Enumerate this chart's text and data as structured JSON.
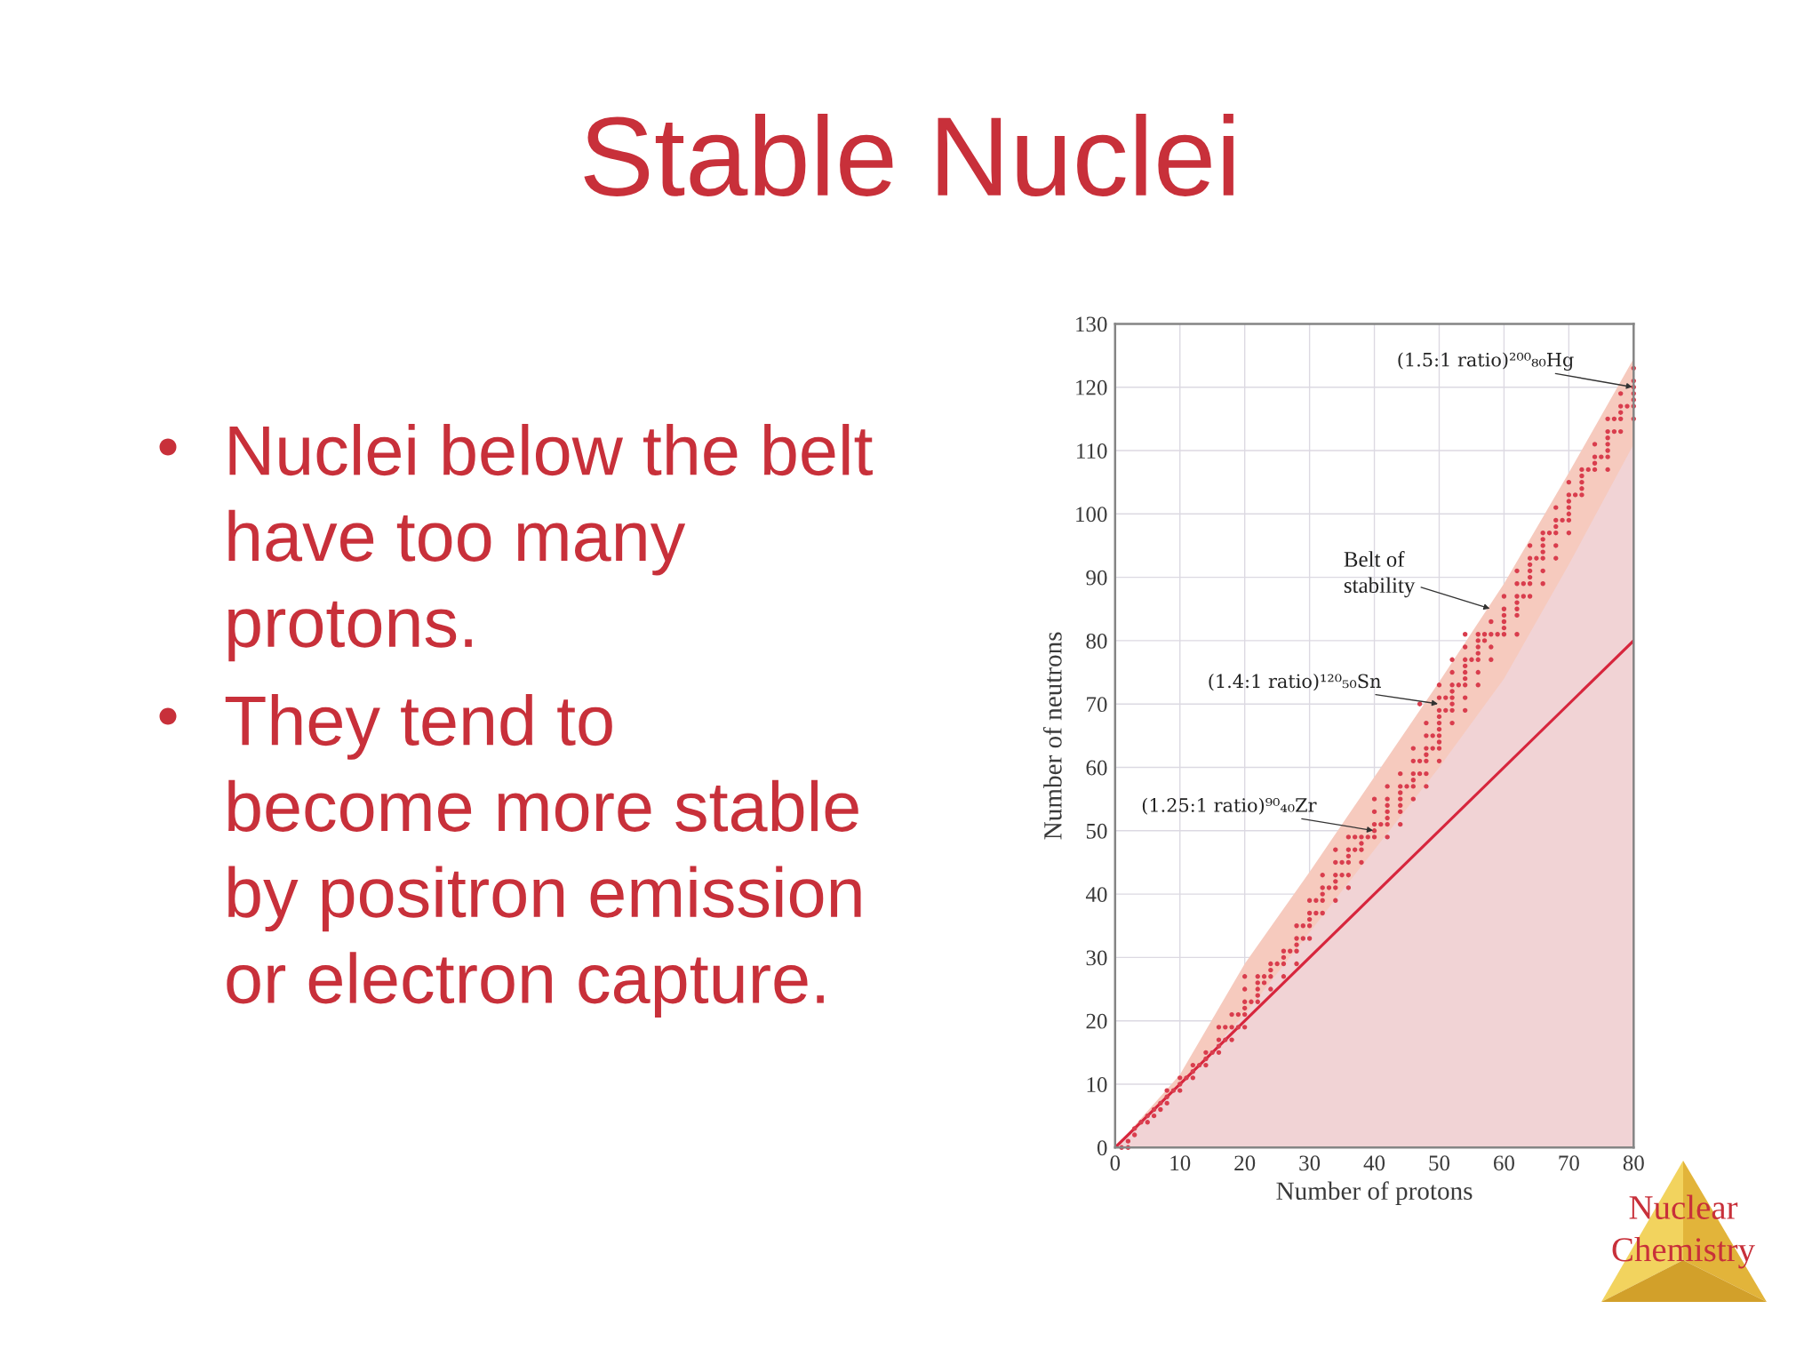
{
  "chart_data": {
    "type": "scatter",
    "title": "Stable Nuclei",
    "xlabel": "Number of protons",
    "ylabel": "Number of neutrons",
    "xlim": [
      0,
      80
    ],
    "xticks": [
      0,
      10,
      20,
      30,
      40,
      50,
      60,
      70,
      80
    ],
    "ylim": [
      0,
      130
    ],
    "yticks": [
      0,
      10,
      20,
      30,
      40,
      50,
      60,
      70,
      80,
      90,
      100,
      110,
      120,
      130
    ],
    "grid": true,
    "series": [
      {
        "type": "area",
        "color": "#f6cabe",
        "x": [
          0,
          10,
          20,
          30,
          40,
          50,
          60,
          70,
          80
        ],
        "values": [
          0,
          11.5,
          29,
          43.5,
          58.5,
          73.5,
          89,
          106.5,
          124.5
        ]
      },
      {
        "type": "area",
        "color": "#f1d3d5",
        "x": [
          0,
          10,
          20,
          30,
          40,
          50,
          60,
          70,
          80
        ],
        "values": [
          0,
          10,
          21,
          34,
          47,
          60,
          74,
          92,
          111
        ]
      },
      {
        "type": "line",
        "color": "#d7263d",
        "x": [
          0,
          80
        ],
        "values": [
          0,
          80
        ]
      },
      {
        "color": "#d93d4d",
        "marker": "circle",
        "x": [
          1,
          2,
          2,
          3,
          3,
          4,
          5,
          5,
          6,
          6,
          7,
          7,
          8,
          8,
          8,
          9,
          10,
          10,
          10,
          11,
          12,
          12,
          12,
          13,
          14,
          14,
          14,
          15,
          16,
          16,
          16,
          16,
          17,
          17,
          18,
          18,
          18,
          19,
          19,
          20,
          20,
          20,
          20,
          20,
          20,
          21,
          22,
          22,
          22,
          22,
          22,
          23,
          23,
          24,
          24,
          24,
          24,
          25,
          26,
          26,
          26,
          26,
          27,
          28,
          28,
          28,
          28,
          28,
          29,
          29,
          30,
          30,
          30,
          30,
          30,
          31,
          31,
          32,
          32,
          32,
          32,
          32,
          33,
          34,
          34,
          34,
          34,
          34,
          34,
          35,
          35,
          36,
          36,
          36,
          36,
          36,
          36,
          37,
          37,
          38,
          38,
          38,
          38,
          39,
          40,
          40,
          40,
          40,
          40,
          41,
          42,
          42,
          42,
          42,
          42,
          42,
          42,
          44,
          44,
          44,
          44,
          44,
          44,
          44,
          45,
          46,
          46,
          46,
          46,
          46,
          46,
          47,
          47,
          47,
          48,
          48,
          48,
          48,
          48,
          48,
          48,
          49,
          49,
          50,
          50,
          50,
          50,
          50,
          50,
          50,
          50,
          50,
          50,
          51,
          51,
          52,
          52,
          52,
          52,
          52,
          52,
          52,
          52,
          53,
          54,
          54,
          54,
          54,
          54,
          54,
          54,
          54,
          54,
          55,
          56,
          56,
          56,
          56,
          56,
          56,
          56,
          57,
          57,
          58,
          58,
          58,
          58,
          59,
          60,
          60,
          60,
          60,
          60,
          60,
          62,
          62,
          62,
          62,
          62,
          62,
          62,
          63,
          63,
          64,
          64,
          64,
          64,
          64,
          64,
          64,
          65,
          66,
          66,
          66,
          66,
          66,
          66,
          66,
          67,
          68,
          68,
          68,
          68,
          68,
          68,
          69,
          70,
          70,
          70,
          70,
          70,
          70,
          70,
          71,
          72,
          72,
          72,
          72,
          72,
          73,
          74,
          74,
          74,
          74,
          75,
          76,
          76,
          76,
          76,
          76,
          76,
          76,
          77,
          77,
          78,
          78,
          78,
          78,
          78,
          79,
          80,
          80,
          80,
          80,
          80,
          80,
          80
        ],
        "values": [
          0,
          0,
          1,
          2,
          3,
          4,
          4,
          5,
          5,
          6,
          6,
          7,
          7,
          8,
          9,
          9,
          9,
          10,
          11,
          11,
          11,
          12,
          13,
          13,
          13,
          14,
          15,
          15,
          15,
          16,
          17,
          19,
          17,
          19,
          17,
          19,
          21,
          19,
          21,
          19,
          21,
          22,
          23,
          25,
          27,
          23,
          23,
          24,
          25,
          26,
          27,
          26,
          27,
          25,
          27,
          28,
          29,
          29,
          27,
          29,
          30,
          31,
          31,
          29,
          31,
          32,
          33,
          35,
          33,
          35,
          33,
          35,
          36,
          37,
          39,
          37,
          39,
          37,
          39,
          40,
          41,
          43,
          41,
          39,
          41,
          42,
          43,
          45,
          47,
          43,
          45,
          41,
          43,
          45,
          46,
          47,
          49,
          47,
          49,
          45,
          47,
          48,
          49,
          49,
          49,
          50,
          51,
          53,
          55,
          51,
          49,
          51,
          52,
          53,
          54,
          55,
          57,
          51,
          53,
          54,
          55,
          56,
          57,
          59,
          57,
          55,
          57,
          58,
          59,
          61,
          63,
          59,
          61,
          70,
          57,
          59,
          61,
          62,
          63,
          65,
          67,
          63,
          65,
          61,
          63,
          64,
          65,
          66,
          67,
          68,
          69,
          71,
          73,
          69,
          71,
          67,
          69,
          70,
          71,
          72,
          73,
          75,
          77,
          73,
          69,
          71,
          73,
          74,
          75,
          76,
          77,
          79,
          81,
          77,
          73,
          75,
          77,
          78,
          79,
          80,
          81,
          80,
          81,
          77,
          79,
          81,
          83,
          81,
          81,
          82,
          83,
          84,
          85,
          87,
          81,
          84,
          85,
          86,
          87,
          89,
          91,
          87,
          89,
          87,
          89,
          90,
          91,
          92,
          93,
          95,
          93,
          89,
          91,
          93,
          94,
          95,
          96,
          97,
          97,
          93,
          95,
          97,
          98,
          99,
          101,
          99,
          97,
          99,
          100,
          101,
          102,
          103,
          105,
          103,
          103,
          104,
          105,
          106,
          107,
          107,
          107,
          108,
          109,
          111,
          109,
          107,
          109,
          110,
          111,
          112,
          113,
          115,
          113,
          115,
          113,
          115,
          116,
          117,
          119,
          117,
          115,
          117,
          118,
          119,
          120,
          121,
          123
        ]
      }
    ],
    "annotations": [
      "Nuclei below the belt have too many protons.",
      "They tend to become more stable by positron emission or electron capture.",
      {
        "text": "(1.5:1 ratio)²⁰⁰₈₀Hg",
        "x": 80,
        "y": 120
      },
      {
        "text": "Belt of stability",
        "x": 58,
        "y": 85
      },
      {
        "text": "(1.4:1 ratio)¹²⁰₅₀Sn",
        "x": 50,
        "y": 70
      },
      {
        "text": "(1.25:1 ratio)⁹⁰₄₀Zr",
        "x": 40,
        "y": 50
      },
      "Nuclear Chemistry"
    ]
  }
}
